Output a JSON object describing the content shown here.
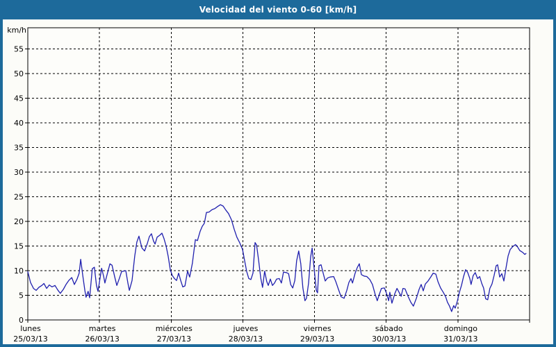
{
  "window": {
    "title": "Velocidad del viento 0-60 [km/h]"
  },
  "colors": {
    "frame": "#1d6a9b",
    "title_text": "#ffffff",
    "content_bg": "#fcfcf8",
    "plot_bg": "#fdfdfa",
    "axis": "#000000",
    "grid": "#000000",
    "line": "#1f1fae"
  },
  "chart_data": {
    "type": "line",
    "title": "Velocidad del viento 0-60 [km/h]",
    "ylabel": "km/h",
    "xlabel": "",
    "ylim": [
      0,
      59.3
    ],
    "y_ticks": [
      0,
      5,
      10,
      15,
      20,
      25,
      30,
      35,
      40,
      45,
      50,
      55
    ],
    "x_range_hours": [
      0,
      168
    ],
    "grid": "dashed-black",
    "legend_position": "none",
    "x_days": [
      {
        "name": "lunes",
        "date": "25/03/13"
      },
      {
        "name": "martes",
        "date": "26/03/13"
      },
      {
        "name": "miércoles",
        "date": "27/03/13"
      },
      {
        "name": "jueves",
        "date": "28/03/13"
      },
      {
        "name": "viernes",
        "date": "29/03/13"
      },
      {
        "name": "sábado",
        "date": "30/03/13"
      },
      {
        "name": "domingo",
        "date": "31/03/13"
      }
    ],
    "series": [
      {
        "name": "Velocidad del viento",
        "units": "km/h",
        "color": "#1f1fae",
        "points": [
          [
            0,
            9.8
          ],
          [
            0.9,
            7.6
          ],
          [
            1.9,
            6.4
          ],
          [
            2.8,
            6.0
          ],
          [
            3.7,
            6.6
          ],
          [
            4.7,
            7.0
          ],
          [
            5.4,
            7.4
          ],
          [
            6.3,
            6.4
          ],
          [
            7.2,
            7.1
          ],
          [
            8.1,
            6.7
          ],
          [
            9.1,
            7.0
          ],
          [
            10.0,
            6.1
          ],
          [
            10.9,
            5.4
          ],
          [
            11.9,
            6.2
          ],
          [
            12.8,
            7.2
          ],
          [
            13.7,
            8.0
          ],
          [
            14.7,
            8.6
          ],
          [
            15.6,
            7.2
          ],
          [
            16.5,
            8.3
          ],
          [
            17.2,
            9.5
          ],
          [
            17.7,
            12.3
          ],
          [
            18.4,
            9.0
          ],
          [
            19.1,
            6.0
          ],
          [
            19.5,
            4.6
          ],
          [
            20.2,
            5.8
          ],
          [
            20.7,
            4.5
          ],
          [
            21.6,
            10.4
          ],
          [
            22.3,
            10.7
          ],
          [
            23.0,
            7.0
          ],
          [
            23.5,
            5.8
          ],
          [
            24.7,
            10.5
          ],
          [
            25.4,
            8.8
          ],
          [
            25.8,
            7.5
          ],
          [
            26.8,
            9.8
          ],
          [
            27.5,
            11.4
          ],
          [
            28.2,
            11.1
          ],
          [
            29.1,
            8.7
          ],
          [
            29.8,
            7.0
          ],
          [
            30.7,
            8.5
          ],
          [
            31.4,
            9.8
          ],
          [
            32.8,
            10.0
          ],
          [
            33.5,
            7.5
          ],
          [
            34.0,
            6.0
          ],
          [
            34.9,
            8.0
          ],
          [
            35.8,
            13.0
          ],
          [
            36.5,
            15.8
          ],
          [
            37.2,
            17.0
          ],
          [
            38.2,
            14.6
          ],
          [
            39.1,
            14.0
          ],
          [
            40.0,
            15.5
          ],
          [
            40.7,
            16.9
          ],
          [
            41.4,
            17.5
          ],
          [
            42.1,
            16.0
          ],
          [
            42.6,
            15.4
          ],
          [
            43.3,
            16.8
          ],
          [
            44.2,
            17.2
          ],
          [
            44.9,
            17.6
          ],
          [
            45.6,
            16.5
          ],
          [
            46.3,
            15.0
          ],
          [
            47.0,
            12.9
          ],
          [
            47.7,
            10.2
          ],
          [
            48.4,
            9.0
          ],
          [
            49.1,
            8.4
          ],
          [
            49.8,
            8.0
          ],
          [
            50.5,
            9.5
          ],
          [
            51.2,
            8.0
          ],
          [
            51.9,
            6.7
          ],
          [
            52.6,
            6.9
          ],
          [
            53.5,
            9.9
          ],
          [
            54.2,
            8.7
          ],
          [
            55.1,
            11.5
          ],
          [
            56.1,
            16.3
          ],
          [
            56.8,
            16.1
          ],
          [
            57.7,
            18.0
          ],
          [
            58.4,
            19.0
          ],
          [
            59.1,
            19.6
          ],
          [
            59.8,
            21.8
          ],
          [
            60.7,
            21.9
          ],
          [
            61.7,
            22.4
          ],
          [
            62.6,
            22.6
          ],
          [
            63.5,
            23.0
          ],
          [
            64.5,
            23.4
          ],
          [
            65.4,
            23.1
          ],
          [
            66.3,
            22.3
          ],
          [
            67.2,
            21.6
          ],
          [
            68.2,
            20.3
          ],
          [
            69.1,
            18.4
          ],
          [
            70.0,
            16.8
          ],
          [
            71.0,
            15.6
          ],
          [
            71.9,
            14.3
          ],
          [
            72.6,
            12.0
          ],
          [
            73.3,
            9.8
          ],
          [
            74.0,
            8.4
          ],
          [
            74.7,
            8.2
          ],
          [
            75.4,
            9.5
          ],
          [
            76.1,
            15.7
          ],
          [
            76.6,
            15.2
          ],
          [
            77.3,
            12.0
          ],
          [
            78.0,
            8.5
          ],
          [
            78.6,
            6.6
          ],
          [
            79.3,
            9.9
          ],
          [
            80.0,
            7.8
          ],
          [
            80.5,
            7.0
          ],
          [
            81.2,
            8.3
          ],
          [
            81.9,
            7.0
          ],
          [
            82.6,
            7.5
          ],
          [
            83.3,
            8.3
          ],
          [
            84.2,
            8.4
          ],
          [
            84.9,
            7.5
          ],
          [
            85.6,
            9.7
          ],
          [
            86.6,
            9.6
          ],
          [
            87.3,
            9.4
          ],
          [
            88.0,
            7.2
          ],
          [
            88.7,
            6.5
          ],
          [
            89.4,
            8.0
          ],
          [
            90.0,
            12.0
          ],
          [
            90.7,
            14.0
          ],
          [
            91.4,
            11.4
          ],
          [
            92.1,
            6.5
          ],
          [
            92.8,
            3.9
          ],
          [
            93.3,
            4.4
          ],
          [
            94.0,
            7.5
          ],
          [
            94.7,
            12.8
          ],
          [
            95.2,
            14.6
          ],
          [
            95.9,
            10.3
          ],
          [
            96.6,
            6.0
          ],
          [
            97.0,
            5.5
          ],
          [
            97.5,
            11.0
          ],
          [
            98.2,
            11.2
          ],
          [
            98.9,
            9.5
          ],
          [
            99.6,
            7.9
          ],
          [
            100.3,
            8.5
          ],
          [
            101.2,
            8.7
          ],
          [
            102.4,
            8.8
          ],
          [
            103.1,
            7.8
          ],
          [
            104.0,
            6.2
          ],
          [
            104.9,
            4.7
          ],
          [
            105.9,
            4.4
          ],
          [
            106.8,
            6.0
          ],
          [
            107.5,
            7.6
          ],
          [
            108.2,
            8.4
          ],
          [
            108.7,
            7.5
          ],
          [
            109.6,
            9.5
          ],
          [
            110.3,
            10.6
          ],
          [
            111.0,
            11.4
          ],
          [
            111.7,
            9.2
          ],
          [
            112.6,
            8.9
          ],
          [
            113.5,
            8.8
          ],
          [
            114.5,
            8.2
          ],
          [
            115.4,
            7.2
          ],
          [
            116.3,
            5.2
          ],
          [
            117.0,
            3.9
          ],
          [
            117.7,
            5.2
          ],
          [
            118.4,
            6.4
          ],
          [
            119.4,
            6.5
          ],
          [
            120.1,
            5.4
          ],
          [
            120.8,
            3.9
          ],
          [
            121.2,
            5.6
          ],
          [
            121.9,
            3.4
          ],
          [
            122.9,
            5.4
          ],
          [
            123.6,
            6.4
          ],
          [
            124.3,
            5.6
          ],
          [
            125.0,
            4.8
          ],
          [
            125.6,
            6.4
          ],
          [
            126.3,
            6.3
          ],
          [
            127.3,
            4.8
          ],
          [
            128.2,
            3.6
          ],
          [
            129.1,
            2.8
          ],
          [
            130.1,
            4.4
          ],
          [
            131.0,
            6.2
          ],
          [
            131.7,
            7.2
          ],
          [
            132.4,
            5.9
          ],
          [
            133.1,
            7.3
          ],
          [
            134.0,
            7.9
          ],
          [
            135.0,
            8.8
          ],
          [
            135.7,
            9.5
          ],
          [
            136.6,
            9.3
          ],
          [
            137.3,
            7.8
          ],
          [
            138.2,
            6.5
          ],
          [
            139.1,
            5.6
          ],
          [
            139.9,
            4.7
          ],
          [
            140.5,
            3.6
          ],
          [
            141.2,
            2.8
          ],
          [
            141.9,
            1.7
          ],
          [
            142.6,
            2.9
          ],
          [
            143.1,
            2.4
          ],
          [
            143.8,
            3.8
          ],
          [
            144.5,
            5.6
          ],
          [
            145.2,
            7.0
          ],
          [
            145.9,
            8.8
          ],
          [
            146.6,
            10.2
          ],
          [
            147.3,
            9.6
          ],
          [
            148.0,
            8.4
          ],
          [
            148.4,
            7.2
          ],
          [
            149.1,
            9.0
          ],
          [
            149.8,
            9.6
          ],
          [
            150.6,
            8.4
          ],
          [
            151.3,
            8.8
          ],
          [
            152.0,
            7.4
          ],
          [
            152.6,
            6.5
          ],
          [
            153.3,
            4.3
          ],
          [
            154.0,
            4.1
          ],
          [
            154.7,
            6.4
          ],
          [
            155.4,
            7.3
          ],
          [
            156.1,
            9.0
          ],
          [
            156.8,
            11.0
          ],
          [
            157.3,
            11.2
          ],
          [
            158.0,
            8.7
          ],
          [
            158.7,
            9.4
          ],
          [
            159.4,
            7.9
          ],
          [
            160.1,
            10.5
          ],
          [
            160.8,
            13.0
          ],
          [
            161.5,
            14.3
          ],
          [
            162.4,
            14.9
          ],
          [
            163.3,
            15.3
          ],
          [
            164.0,
            14.8
          ],
          [
            164.7,
            14.1
          ],
          [
            165.7,
            13.7
          ],
          [
            166.4,
            13.3
          ],
          [
            166.8,
            13.5
          ]
        ]
      }
    ]
  }
}
